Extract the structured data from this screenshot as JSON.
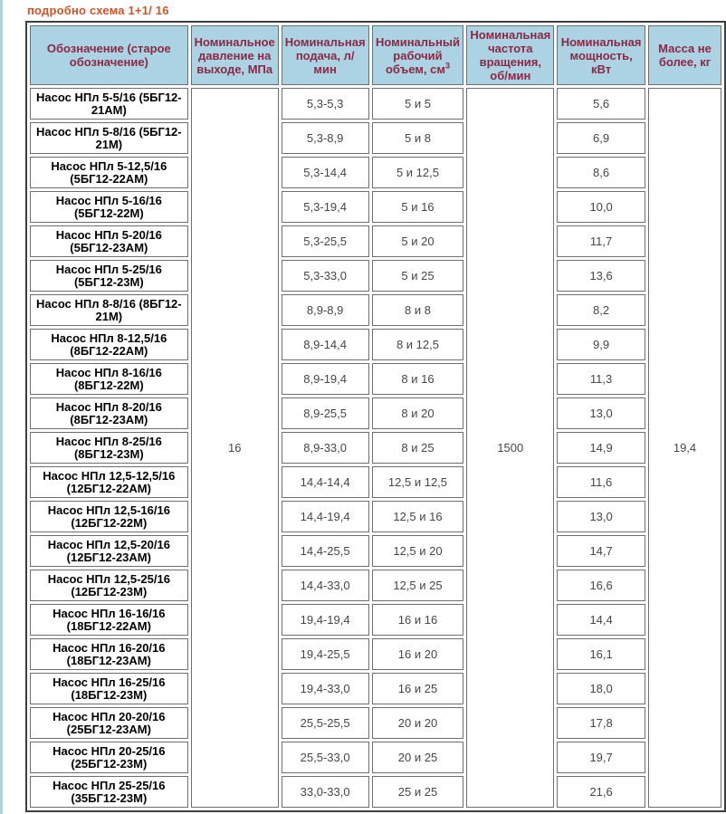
{
  "page": {
    "title": "подробно схема 1+1/ 16",
    "title_color": "#c9562b",
    "left_edge_color": "#b3d0de",
    "background_color": "#ffffff"
  },
  "table": {
    "header_bg_color": "#abd3e3",
    "header_text_color": "#8c2846",
    "grid_border_color": "#6e6e6e",
    "headers": [
      {
        "text": "Обозначение (старое обозначение)"
      },
      {
        "text": "Номинальное давление на выходе, МПа"
      },
      {
        "text": "Номинальная подача, л/ мин"
      },
      {
        "text": "Номинальный рабочий объем, см",
        "sup": "3"
      },
      {
        "text": "Номинальная частота вращения, об/мин"
      },
      {
        "text": "Номинальная мощность, кВт"
      },
      {
        "text": "Масса не более, кг"
      }
    ],
    "merged": {
      "pressure": "16",
      "speed": "1500",
      "mass": "19,4"
    },
    "rows": [
      {
        "name": "Насос НПл 5-5/16 (5БГ12-21АМ)",
        "flow": "5,3-5,3",
        "volume": "5 и 5",
        "power": "5,6"
      },
      {
        "name": "Насос НПл 5-8/16 (5БГ12-21М)",
        "flow": "5,3-8,9",
        "volume": "5 и 8",
        "power": "6,9"
      },
      {
        "name": "Насос НПл 5-12,5/16 (5БГ12-22АМ)",
        "flow": "5,3-14,4",
        "volume": "5 и 12,5",
        "power": "8,6"
      },
      {
        "name": "Насос НПл 5-16/16 (5БГ12-22М)",
        "flow": "5,3-19,4",
        "volume": "5 и 16",
        "power": "10,0"
      },
      {
        "name": "Насос НПл 5-20/16 (5БГ12-23АМ)",
        "flow": "5,3-25,5",
        "volume": "5 и 20",
        "power": "11,7"
      },
      {
        "name": "Насос НПл 5-25/16 (5БГ12-23М)",
        "flow": "5,3-33,0",
        "volume": "5 и 25",
        "power": "13,6"
      },
      {
        "name": "Насос НПл 8-8/16 (8БГ12-21М)",
        "flow": "8,9-8,9",
        "volume": "8 и 8",
        "power": "8,2"
      },
      {
        "name": "Насос НПл 8-12,5/16 (8БГ12-22АМ)",
        "flow": "8,9-14,4",
        "volume": "8 и 12,5",
        "power": "9,9"
      },
      {
        "name": "Насос НПл 8-16/16 (8БГ12-22М)",
        "flow": "8,9-19,4",
        "volume": "8 и 16",
        "power": "11,3"
      },
      {
        "name": "Насос НПл 8-20/16 (8БГ12-23АМ)",
        "flow": "8,9-25,5",
        "volume": "8 и 20",
        "power": "13,0"
      },
      {
        "name": "Насос НПл 8-25/16 (8БГ12-23М)",
        "flow": "8,9-33,0",
        "volume": "8 и 25",
        "power": "14,9"
      },
      {
        "name": "Насос НПл 12,5-12,5/16 (12БГ12-22АМ)",
        "flow": "14,4-14,4",
        "volume": "12,5 и 12,5",
        "power": "11,6"
      },
      {
        "name": "Насос НПл 12,5-16/16 (12БГ12-22М)",
        "flow": "14,4-19,4",
        "volume": "12,5 и 16",
        "power": "13,0"
      },
      {
        "name": "Насос НПл 12,5-20/16 (12БГ12-23АМ)",
        "flow": "14,4-25,5",
        "volume": "12,5 и 20",
        "power": "14,7"
      },
      {
        "name": "Насос НПл 12,5-25/16 (12БГ12-23М)",
        "flow": "14,4-33,0",
        "volume": "12,5 и 25",
        "power": "16,6"
      },
      {
        "name": "Насос НПл 16-16/16 (18БГ12-22АМ)",
        "flow": "19,4-19,4",
        "volume": "16 и 16",
        "power": "14,4"
      },
      {
        "name": "Насос НПл 16-20/16 (18БГ12-23АМ)",
        "flow": "19,4-25,5",
        "volume": "16 и 20",
        "power": "16,1"
      },
      {
        "name": "Насос НПл 16-25/16 (18БГ12-23М)",
        "flow": "19,4-33,0",
        "volume": "16 и 25",
        "power": "18,0"
      },
      {
        "name": "Насос НПл 20-20/16 (25БГ12-23АМ)",
        "flow": "25,5-25,5",
        "volume": "20 и 20",
        "power": "17,8"
      },
      {
        "name": "Насос НПл 20-25/16 (25БГ12-23М)",
        "flow": "25,5-33,0",
        "volume": "20 и 25",
        "power": "19,7"
      },
      {
        "name": "Насос НПл 25-25/16 (35БГ12-23М)",
        "flow": "33,0-33,0",
        "volume": "25 и 25",
        "power": "21,6"
      }
    ]
  }
}
